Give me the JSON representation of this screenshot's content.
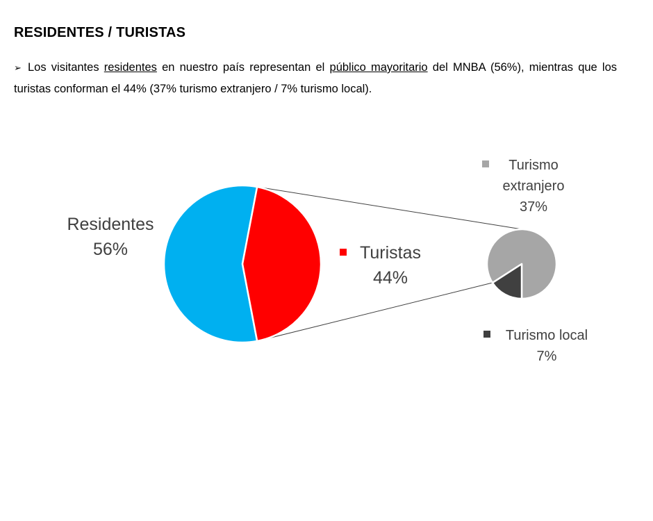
{
  "heading": "RESIDENTES / TURISTAS",
  "paragraph": {
    "bullet": "➢",
    "t1": "Los visitantes ",
    "u1": "residentes",
    "t2": " en nuestro país representan el ",
    "u2": "público mayoritario",
    "t3": " del MNBA (56%), mientras que los turistas conforman el 44% (37% turismo extranjero / 7% turismo local)."
  },
  "chart_data": {
    "type": "pie",
    "subtype": "pie-of-pie",
    "main": {
      "slices": [
        {
          "name": "Residentes",
          "value": 56,
          "label": "56%",
          "color": "#00B0F0"
        },
        {
          "name": "Turistas",
          "value": 44,
          "label": "44%",
          "color": "#FF0000"
        }
      ]
    },
    "secondary": {
      "of": "Turistas",
      "slices": [
        {
          "name_lines": [
            "Turismo",
            "extranjero"
          ],
          "value": 37,
          "label": "37%",
          "color": "#A6A6A6"
        },
        {
          "name_lines": [
            "Turismo local"
          ],
          "value": 7,
          "label": "7%",
          "color": "#404040"
        }
      ]
    },
    "legend": "inline labels"
  }
}
